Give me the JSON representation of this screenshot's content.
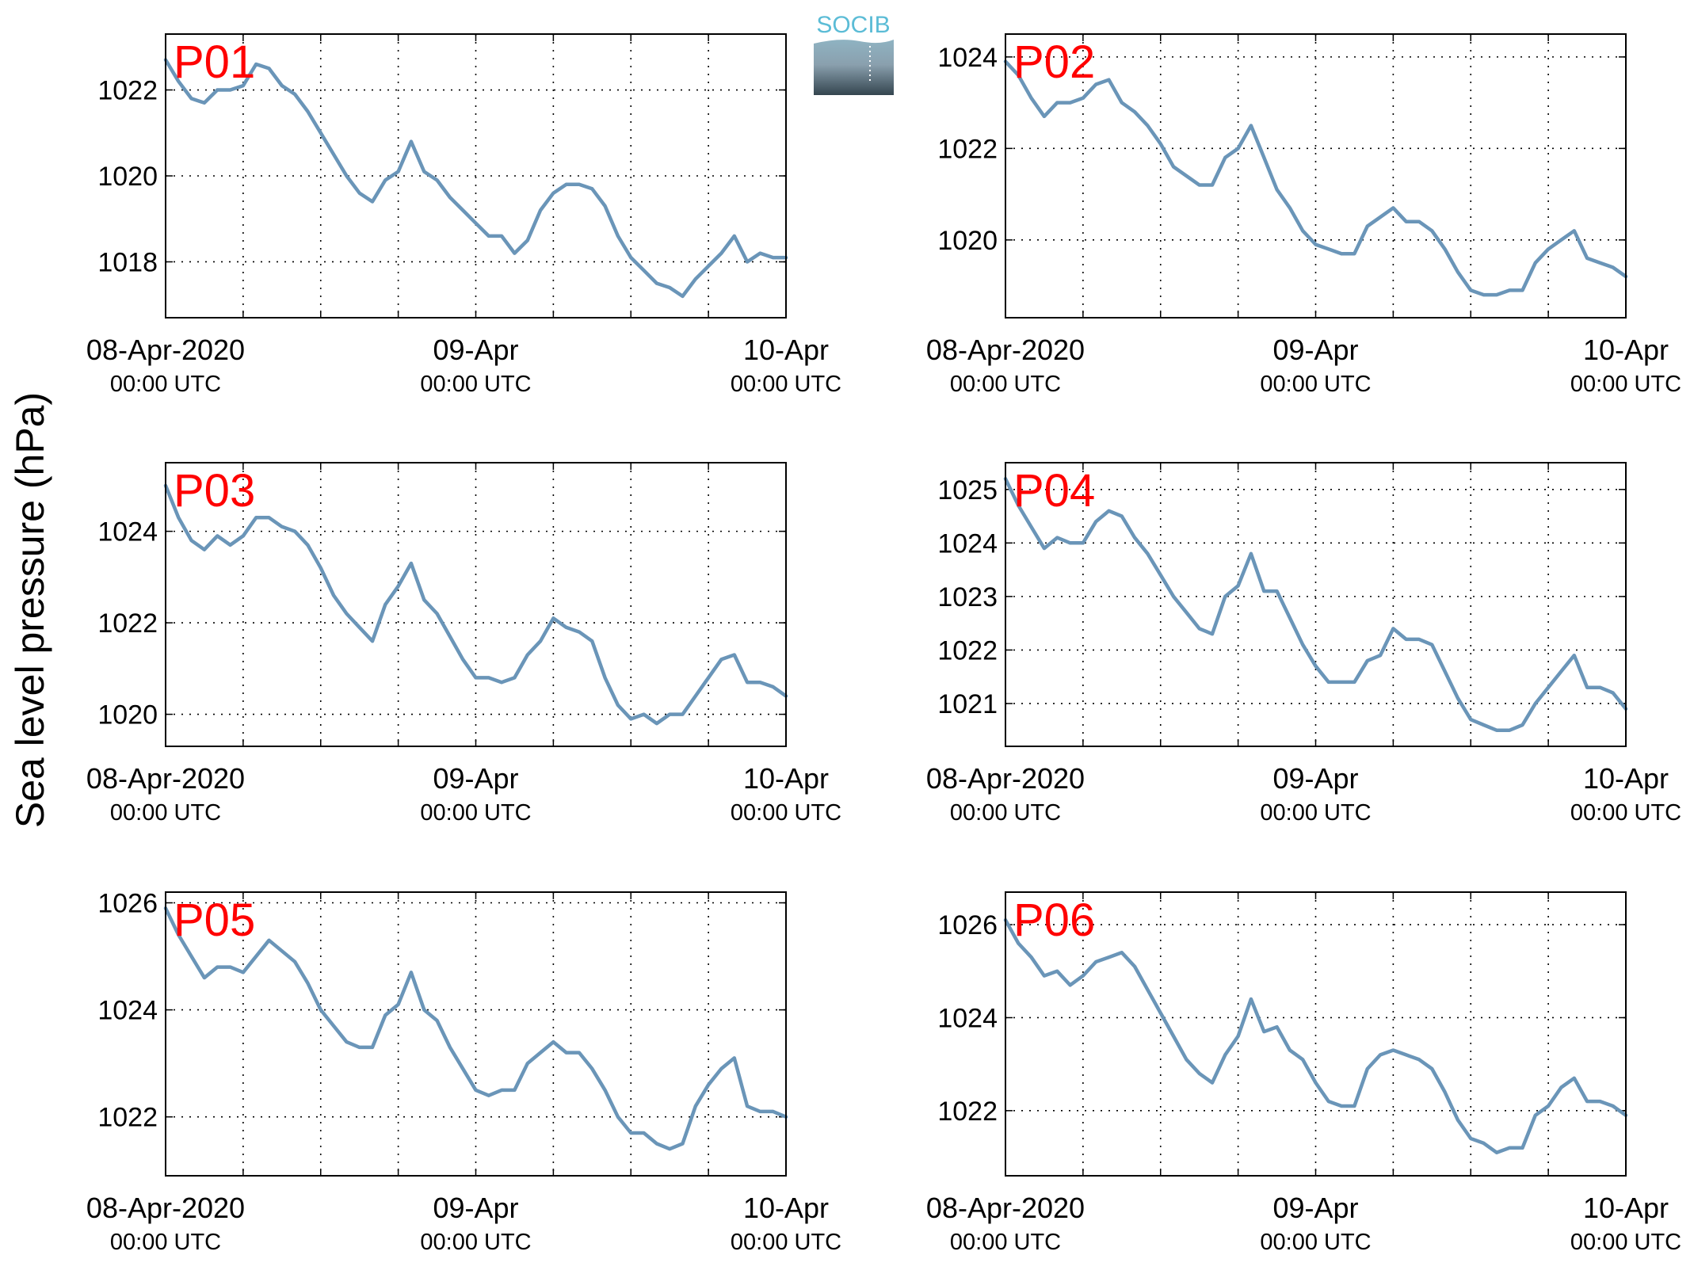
{
  "figure": {
    "ylabel": "Sea level pressure (hPa)",
    "logo_text": "SOCIB",
    "colors": {
      "line": "#6a95b8",
      "label": "#ff0000",
      "axis": "#000000",
      "grid": "#000000"
    },
    "xtick_main": [
      "08-Apr-2020",
      "09-Apr",
      "10-Apr"
    ],
    "xtick_sub": [
      "00:00 UTC",
      "00:00 UTC",
      "00:00 UTC"
    ]
  },
  "chart_data": [
    {
      "type": "line",
      "panel_label": "P01",
      "ylim": [
        1016.7,
        1023.3
      ],
      "yticks": [
        1018,
        1020,
        1022
      ],
      "grid": true,
      "xlim": [
        "2020-04-08T00:00",
        "2020-04-10T00:00"
      ],
      "x": [
        "2020-04-08T00:00",
        "2020-04-08T01:00",
        "2020-04-08T02:00",
        "2020-04-08T03:00",
        "2020-04-08T04:00",
        "2020-04-08T05:00",
        "2020-04-08T06:00",
        "2020-04-08T07:00",
        "2020-04-08T08:00",
        "2020-04-08T09:00",
        "2020-04-08T10:00",
        "2020-04-08T11:00",
        "2020-04-08T12:00",
        "2020-04-08T13:00",
        "2020-04-08T14:00",
        "2020-04-08T15:00",
        "2020-04-08T16:00",
        "2020-04-08T17:00",
        "2020-04-08T18:00",
        "2020-04-08T19:00",
        "2020-04-08T20:00",
        "2020-04-08T21:00",
        "2020-04-08T22:00",
        "2020-04-08T23:00",
        "2020-04-09T00:00",
        "2020-04-09T01:00",
        "2020-04-09T02:00",
        "2020-04-09T03:00",
        "2020-04-09T04:00",
        "2020-04-09T05:00",
        "2020-04-09T06:00",
        "2020-04-09T07:00",
        "2020-04-09T08:00",
        "2020-04-09T09:00",
        "2020-04-09T10:00",
        "2020-04-09T11:00",
        "2020-04-09T12:00",
        "2020-04-09T13:00",
        "2020-04-09T14:00",
        "2020-04-09T15:00",
        "2020-04-09T16:00",
        "2020-04-09T17:00",
        "2020-04-09T18:00",
        "2020-04-09T19:00",
        "2020-04-09T20:00",
        "2020-04-09T21:00",
        "2020-04-09T22:00",
        "2020-04-09T23:00",
        "2020-04-10T00:00"
      ],
      "y": [
        1022.7,
        1022.2,
        1021.8,
        1021.7,
        1022.0,
        1022.0,
        1022.1,
        1022.6,
        1022.5,
        1022.1,
        1021.9,
        1021.5,
        1021.0,
        1020.5,
        1020.0,
        1019.6,
        1019.4,
        1019.9,
        1020.1,
        1020.8,
        1020.1,
        1019.9,
        1019.5,
        1019.2,
        1018.9,
        1018.6,
        1018.6,
        1018.2,
        1018.5,
        1019.2,
        1019.6,
        1019.8,
        1019.8,
        1019.7,
        1019.3,
        1018.6,
        1018.1,
        1017.8,
        1017.5,
        1017.4,
        1017.2,
        1017.6,
        1017.9,
        1018.2,
        1018.6,
        1018.0,
        1018.2,
        1018.1,
        1018.1
      ]
    },
    {
      "type": "line",
      "panel_label": "P02",
      "ylim": [
        1018.3,
        1024.5
      ],
      "yticks": [
        1020,
        1022,
        1024
      ],
      "grid": true,
      "xlim": [
        "2020-04-08T00:00",
        "2020-04-10T00:00"
      ],
      "x": [
        "2020-04-08T00:00",
        "2020-04-08T01:00",
        "2020-04-08T02:00",
        "2020-04-08T03:00",
        "2020-04-08T04:00",
        "2020-04-08T05:00",
        "2020-04-08T06:00",
        "2020-04-08T07:00",
        "2020-04-08T08:00",
        "2020-04-08T09:00",
        "2020-04-08T10:00",
        "2020-04-08T11:00",
        "2020-04-08T12:00",
        "2020-04-08T13:00",
        "2020-04-08T14:00",
        "2020-04-08T15:00",
        "2020-04-08T16:00",
        "2020-04-08T17:00",
        "2020-04-08T18:00",
        "2020-04-08T19:00",
        "2020-04-08T20:00",
        "2020-04-08T21:00",
        "2020-04-08T22:00",
        "2020-04-08T23:00",
        "2020-04-09T00:00",
        "2020-04-09T01:00",
        "2020-04-09T02:00",
        "2020-04-09T03:00",
        "2020-04-09T04:00",
        "2020-04-09T05:00",
        "2020-04-09T06:00",
        "2020-04-09T07:00",
        "2020-04-09T08:00",
        "2020-04-09T09:00",
        "2020-04-09T10:00",
        "2020-04-09T11:00",
        "2020-04-09T12:00",
        "2020-04-09T13:00",
        "2020-04-09T14:00",
        "2020-04-09T15:00",
        "2020-04-09T16:00",
        "2020-04-09T17:00",
        "2020-04-09T18:00",
        "2020-04-09T19:00",
        "2020-04-09T20:00",
        "2020-04-09T21:00",
        "2020-04-09T22:00",
        "2020-04-09T23:00",
        "2020-04-10T00:00"
      ],
      "y": [
        1023.9,
        1023.6,
        1023.1,
        1022.7,
        1023.0,
        1023.0,
        1023.1,
        1023.4,
        1023.5,
        1023.0,
        1022.8,
        1022.5,
        1022.1,
        1021.6,
        1021.4,
        1021.2,
        1021.2,
        1021.8,
        1022.0,
        1022.5,
        1021.8,
        1021.1,
        1020.7,
        1020.2,
        1019.9,
        1019.8,
        1019.7,
        1019.7,
        1020.3,
        1020.5,
        1020.7,
        1020.4,
        1020.4,
        1020.2,
        1019.8,
        1019.3,
        1018.9,
        1018.8,
        1018.8,
        1018.9,
        1018.9,
        1019.5,
        1019.8,
        1020.0,
        1020.2,
        1019.6,
        1019.5,
        1019.4,
        1019.2
      ]
    },
    {
      "type": "line",
      "panel_label": "P03",
      "ylim": [
        1019.3,
        1025.5
      ],
      "yticks": [
        1020,
        1022,
        1024
      ],
      "grid": true,
      "xlim": [
        "2020-04-08T00:00",
        "2020-04-10T00:00"
      ],
      "x": [
        "2020-04-08T00:00",
        "2020-04-08T01:00",
        "2020-04-08T02:00",
        "2020-04-08T03:00",
        "2020-04-08T04:00",
        "2020-04-08T05:00",
        "2020-04-08T06:00",
        "2020-04-08T07:00",
        "2020-04-08T08:00",
        "2020-04-08T09:00",
        "2020-04-08T10:00",
        "2020-04-08T11:00",
        "2020-04-08T12:00",
        "2020-04-08T13:00",
        "2020-04-08T14:00",
        "2020-04-08T15:00",
        "2020-04-08T16:00",
        "2020-04-08T17:00",
        "2020-04-08T18:00",
        "2020-04-08T19:00",
        "2020-04-08T20:00",
        "2020-04-08T21:00",
        "2020-04-08T22:00",
        "2020-04-08T23:00",
        "2020-04-09T00:00",
        "2020-04-09T01:00",
        "2020-04-09T02:00",
        "2020-04-09T03:00",
        "2020-04-09T04:00",
        "2020-04-09T05:00",
        "2020-04-09T06:00",
        "2020-04-09T07:00",
        "2020-04-09T08:00",
        "2020-04-09T09:00",
        "2020-04-09T10:00",
        "2020-04-09T11:00",
        "2020-04-09T12:00",
        "2020-04-09T13:00",
        "2020-04-09T14:00",
        "2020-04-09T15:00",
        "2020-04-09T16:00",
        "2020-04-09T17:00",
        "2020-04-09T18:00",
        "2020-04-09T19:00",
        "2020-04-09T20:00",
        "2020-04-09T21:00",
        "2020-04-09T22:00",
        "2020-04-09T23:00",
        "2020-04-10T00:00"
      ],
      "y": [
        1025.0,
        1024.3,
        1023.8,
        1023.6,
        1023.9,
        1023.7,
        1023.9,
        1024.3,
        1024.3,
        1024.1,
        1024.0,
        1023.7,
        1023.2,
        1022.6,
        1022.2,
        1021.9,
        1021.6,
        1022.4,
        1022.8,
        1023.3,
        1022.5,
        1022.2,
        1021.7,
        1021.2,
        1020.8,
        1020.8,
        1020.7,
        1020.8,
        1021.3,
        1021.6,
        1022.1,
        1021.9,
        1021.8,
        1021.6,
        1020.8,
        1020.2,
        1019.9,
        1020.0,
        1019.8,
        1020.0,
        1020.0,
        1020.4,
        1020.8,
        1021.2,
        1021.3,
        1020.7,
        1020.7,
        1020.6,
        1020.4
      ]
    },
    {
      "type": "line",
      "panel_label": "P04",
      "ylim": [
        1020.2,
        1025.5
      ],
      "yticks": [
        1021,
        1022,
        1023,
        1024,
        1025
      ],
      "grid": true,
      "xlim": [
        "2020-04-08T00:00",
        "2020-04-10T00:00"
      ],
      "x": [
        "2020-04-08T00:00",
        "2020-04-08T01:00",
        "2020-04-08T02:00",
        "2020-04-08T03:00",
        "2020-04-08T04:00",
        "2020-04-08T05:00",
        "2020-04-08T06:00",
        "2020-04-08T07:00",
        "2020-04-08T08:00",
        "2020-04-08T09:00",
        "2020-04-08T10:00",
        "2020-04-08T11:00",
        "2020-04-08T12:00",
        "2020-04-08T13:00",
        "2020-04-08T14:00",
        "2020-04-08T15:00",
        "2020-04-08T16:00",
        "2020-04-08T17:00",
        "2020-04-08T18:00",
        "2020-04-08T19:00",
        "2020-04-08T20:00",
        "2020-04-08T21:00",
        "2020-04-08T22:00",
        "2020-04-08T23:00",
        "2020-04-09T00:00",
        "2020-04-09T01:00",
        "2020-04-09T02:00",
        "2020-04-09T03:00",
        "2020-04-09T04:00",
        "2020-04-09T05:00",
        "2020-04-09T06:00",
        "2020-04-09T07:00",
        "2020-04-09T08:00",
        "2020-04-09T09:00",
        "2020-04-09T10:00",
        "2020-04-09T11:00",
        "2020-04-09T12:00",
        "2020-04-09T13:00",
        "2020-04-09T14:00",
        "2020-04-09T15:00",
        "2020-04-09T16:00",
        "2020-04-09T17:00",
        "2020-04-09T18:00",
        "2020-04-09T19:00",
        "2020-04-09T20:00",
        "2020-04-09T21:00",
        "2020-04-09T22:00",
        "2020-04-09T23:00",
        "2020-04-10T00:00"
      ],
      "y": [
        1025.2,
        1024.7,
        1024.3,
        1023.9,
        1024.1,
        1024.0,
        1024.0,
        1024.4,
        1024.6,
        1024.5,
        1024.1,
        1023.8,
        1023.4,
        1023.0,
        1022.7,
        1022.4,
        1022.3,
        1023.0,
        1023.2,
        1023.8,
        1023.1,
        1023.1,
        1022.6,
        1022.1,
        1021.7,
        1021.4,
        1021.4,
        1021.4,
        1021.8,
        1021.9,
        1022.4,
        1022.2,
        1022.2,
        1022.1,
        1021.6,
        1021.1,
        1020.7,
        1020.6,
        1020.5,
        1020.5,
        1020.6,
        1021.0,
        1021.3,
        1021.6,
        1021.9,
        1021.3,
        1021.3,
        1021.2,
        1020.9
      ]
    },
    {
      "type": "line",
      "panel_label": "P05",
      "ylim": [
        1020.9,
        1026.2
      ],
      "yticks": [
        1022,
        1024,
        1026
      ],
      "grid": true,
      "xlim": [
        "2020-04-08T00:00",
        "2020-04-10T00:00"
      ],
      "x": [
        "2020-04-08T00:00",
        "2020-04-08T01:00",
        "2020-04-08T02:00",
        "2020-04-08T03:00",
        "2020-04-08T04:00",
        "2020-04-08T05:00",
        "2020-04-08T06:00",
        "2020-04-08T07:00",
        "2020-04-08T08:00",
        "2020-04-08T09:00",
        "2020-04-08T10:00",
        "2020-04-08T11:00",
        "2020-04-08T12:00",
        "2020-04-08T13:00",
        "2020-04-08T14:00",
        "2020-04-08T15:00",
        "2020-04-08T16:00",
        "2020-04-08T17:00",
        "2020-04-08T18:00",
        "2020-04-08T19:00",
        "2020-04-08T20:00",
        "2020-04-08T21:00",
        "2020-04-08T22:00",
        "2020-04-08T23:00",
        "2020-04-09T00:00",
        "2020-04-09T01:00",
        "2020-04-09T02:00",
        "2020-04-09T03:00",
        "2020-04-09T04:00",
        "2020-04-09T05:00",
        "2020-04-09T06:00",
        "2020-04-09T07:00",
        "2020-04-09T08:00",
        "2020-04-09T09:00",
        "2020-04-09T10:00",
        "2020-04-09T11:00",
        "2020-04-09T12:00",
        "2020-04-09T13:00",
        "2020-04-09T14:00",
        "2020-04-09T15:00",
        "2020-04-09T16:00",
        "2020-04-09T17:00",
        "2020-04-09T18:00",
        "2020-04-09T19:00",
        "2020-04-09T20:00",
        "2020-04-09T21:00",
        "2020-04-09T22:00",
        "2020-04-09T23:00",
        "2020-04-10T00:00"
      ],
      "y": [
        1025.9,
        1025.4,
        1025.0,
        1024.6,
        1024.8,
        1024.8,
        1024.7,
        1025.0,
        1025.3,
        1025.1,
        1024.9,
        1024.5,
        1024.0,
        1023.7,
        1023.4,
        1023.3,
        1023.3,
        1023.9,
        1024.1,
        1024.7,
        1024.0,
        1023.8,
        1023.3,
        1022.9,
        1022.5,
        1022.4,
        1022.5,
        1022.5,
        1023.0,
        1023.2,
        1023.4,
        1023.2,
        1023.2,
        1022.9,
        1022.5,
        1022.0,
        1021.7,
        1021.7,
        1021.5,
        1021.4,
        1021.5,
        1022.2,
        1022.6,
        1022.9,
        1023.1,
        1022.2,
        1022.1,
        1022.1,
        1022.0
      ]
    },
    {
      "type": "line",
      "panel_label": "P06",
      "ylim": [
        1020.6,
        1026.7
      ],
      "yticks": [
        1022,
        1024,
        1026
      ],
      "grid": true,
      "xlim": [
        "2020-04-08T00:00",
        "2020-04-10T00:00"
      ],
      "x": [
        "2020-04-08T00:00",
        "2020-04-08T01:00",
        "2020-04-08T02:00",
        "2020-04-08T03:00",
        "2020-04-08T04:00",
        "2020-04-08T05:00",
        "2020-04-08T06:00",
        "2020-04-08T07:00",
        "2020-04-08T08:00",
        "2020-04-08T09:00",
        "2020-04-08T10:00",
        "2020-04-08T11:00",
        "2020-04-08T12:00",
        "2020-04-08T13:00",
        "2020-04-08T14:00",
        "2020-04-08T15:00",
        "2020-04-08T16:00",
        "2020-04-08T17:00",
        "2020-04-08T18:00",
        "2020-04-08T19:00",
        "2020-04-08T20:00",
        "2020-04-08T21:00",
        "2020-04-08T22:00",
        "2020-04-08T23:00",
        "2020-04-09T00:00",
        "2020-04-09T01:00",
        "2020-04-09T02:00",
        "2020-04-09T03:00",
        "2020-04-09T04:00",
        "2020-04-09T05:00",
        "2020-04-09T06:00",
        "2020-04-09T07:00",
        "2020-04-09T08:00",
        "2020-04-09T09:00",
        "2020-04-09T10:00",
        "2020-04-09T11:00",
        "2020-04-09T12:00",
        "2020-04-09T13:00",
        "2020-04-09T14:00",
        "2020-04-09T15:00",
        "2020-04-09T16:00",
        "2020-04-09T17:00",
        "2020-04-09T18:00",
        "2020-04-09T19:00",
        "2020-04-09T20:00",
        "2020-04-09T21:00",
        "2020-04-09T22:00",
        "2020-04-09T23:00",
        "2020-04-10T00:00"
      ],
      "y": [
        1026.1,
        1025.6,
        1025.3,
        1024.9,
        1025.0,
        1024.7,
        1024.9,
        1025.2,
        1025.3,
        1025.4,
        1025.1,
        1024.6,
        1024.1,
        1023.6,
        1023.1,
        1022.8,
        1022.6,
        1023.2,
        1023.6,
        1024.4,
        1023.7,
        1023.8,
        1023.3,
        1023.1,
        1022.6,
        1022.2,
        1022.1,
        1022.1,
        1022.9,
        1023.2,
        1023.3,
        1023.2,
        1023.1,
        1022.9,
        1022.4,
        1021.8,
        1021.4,
        1021.3,
        1021.1,
        1021.2,
        1021.2,
        1021.9,
        1022.1,
        1022.5,
        1022.7,
        1022.2,
        1022.2,
        1022.1,
        1021.9
      ]
    }
  ]
}
